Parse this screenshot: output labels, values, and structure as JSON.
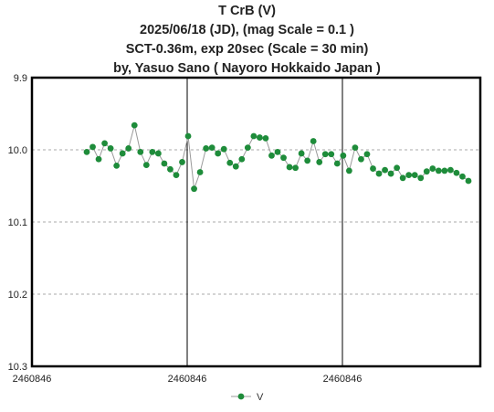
{
  "chart_data": {
    "type": "scatter",
    "title_lines": [
      "T CrB  (V)",
      "2025/06/18 (JD),   (mag Scale = 0.1 )",
      "SCT-0.36m, exp 20sec (Scale = 30 min)",
      "by, Yasuo Sano ( Nayoro Hokkaido Japan )"
    ],
    "ylim": [
      9.9,
      10.3
    ],
    "y_inverted": true,
    "y_ticks": [
      "9.9",
      "10.0",
      "10.1",
      "10.2",
      "10.3"
    ],
    "x_tick_labels": [
      "2460846",
      "2460846",
      "2460846"
    ],
    "series": [
      {
        "name": "V",
        "color": "#1e8c3a",
        "x": [
          0,
          1,
          2,
          3,
          4,
          5,
          6,
          7,
          8,
          9,
          10,
          11,
          12,
          13,
          14,
          15,
          16,
          17,
          18,
          19,
          20,
          21,
          22,
          23,
          24,
          25,
          26,
          27,
          28,
          29,
          30,
          31,
          32,
          33,
          34,
          35,
          36,
          37,
          38,
          39,
          40,
          41,
          42,
          43,
          44,
          45,
          46,
          47,
          48,
          49,
          50,
          51,
          52,
          53,
          54,
          55,
          56,
          57,
          58,
          59,
          60,
          61,
          62,
          63,
          64
        ],
        "values": [
          10.003,
          9.996,
          10.013,
          9.991,
          9.998,
          10.022,
          10.005,
          9.998,
          9.966,
          10.003,
          10.021,
          10.003,
          10.005,
          10.019,
          10.027,
          10.035,
          10.017,
          9.981,
          10.054,
          10.031,
          9.998,
          9.997,
          10.005,
          9.999,
          10.018,
          10.023,
          10.013,
          9.997,
          9.981,
          9.983,
          9.984,
          10.008,
          10.003,
          10.011,
          10.024,
          10.025,
          10.005,
          10.015,
          9.988,
          10.017,
          10.006,
          10.006,
          10.019,
          10.008,
          10.029,
          9.997,
          10.013,
          10.006,
          10.026,
          10.033,
          10.028,
          10.033,
          10.025,
          10.039,
          10.035,
          10.035,
          10.039,
          10.03,
          10.026,
          10.029,
          10.029,
          10.028,
          10.032,
          10.037,
          10.043
        ]
      }
    ],
    "legend": {
      "label": "V",
      "position": "bottom"
    },
    "grid": "horizontal dashed"
  }
}
